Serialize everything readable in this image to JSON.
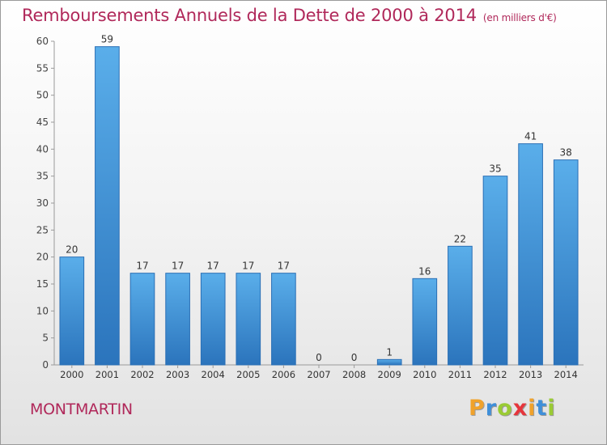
{
  "title": "Remboursements Annuels de la Dette de 2000 à 2014",
  "subtitle": "(en milliers d'€)",
  "place_name": "MONTMARTIN",
  "logo": {
    "letters": [
      "P",
      "r",
      "o",
      "x",
      "i",
      "t",
      "i"
    ],
    "colors": [
      "#f0a22b",
      "#3f8fd9",
      "#9acb34",
      "#e6353c",
      "#f0a22b",
      "#3f8fd9",
      "#9acb34"
    ]
  },
  "colors": {
    "accent": "#b0285a",
    "bar_light": "#5aaeea",
    "bar_dark": "#2b74bc"
  },
  "chart_data": {
    "type": "bar",
    "categories": [
      "2000",
      "2001",
      "2002",
      "2003",
      "2004",
      "2005",
      "2006",
      "2007",
      "2008",
      "2009",
      "2010",
      "2011",
      "2012",
      "2013",
      "2014"
    ],
    "values": [
      20,
      59,
      17,
      17,
      17,
      17,
      17,
      0,
      0,
      1,
      16,
      22,
      35,
      41,
      38
    ],
    "yticks": [
      0,
      5,
      10,
      15,
      20,
      25,
      30,
      35,
      40,
      45,
      50,
      55,
      60
    ],
    "ylim": [
      0,
      60
    ],
    "grid": false,
    "legend": "none"
  }
}
